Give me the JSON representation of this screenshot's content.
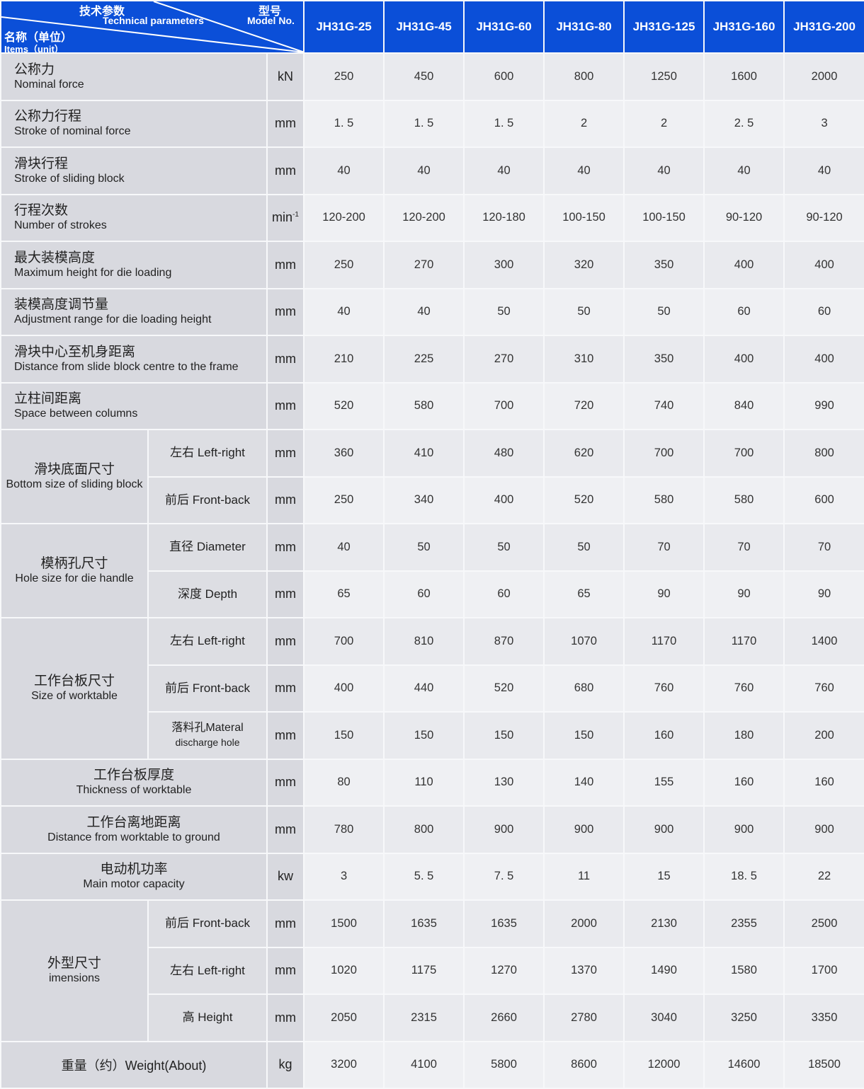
{
  "header": {
    "tech_cn": "技术参数",
    "tech_en": "Technical parameters",
    "model_cn": "型号",
    "model_en": "Model No.",
    "items_cn": "名称（单位）",
    "items_en": "Items（unit）",
    "models": [
      "JH31G-25",
      "JH31G-45",
      "JH31G-60",
      "JH31G-80",
      "JH31G-125",
      "JH31G-160",
      "JH31G-200"
    ],
    "color": "#0b4fd8"
  },
  "rows": [
    {
      "cn": "公称力",
      "en": "Nominal force",
      "unit": "kN",
      "values": [
        "250",
        "450",
        "600",
        "800",
        "1250",
        "1600",
        "2000"
      ],
      "align": "left"
    },
    {
      "cn": "公称力行程",
      "en": "Stroke of nominal force",
      "unit": "mm",
      "values": [
        "1. 5",
        "1. 5",
        "1. 5",
        "2",
        "2",
        "2. 5",
        "3"
      ],
      "align": "left"
    },
    {
      "cn": "滑块行程",
      "en": "Stroke of sliding block",
      "unit": "mm",
      "values": [
        "40",
        "40",
        "40",
        "40",
        "40",
        "40",
        "40"
      ],
      "align": "left"
    },
    {
      "cn": "行程次数",
      "en": "Number of strokes",
      "unit": "min",
      "unit_sup": "-1",
      "values": [
        "120-200",
        "120-200",
        "120-180",
        "100-150",
        "100-150",
        "90-120",
        "90-120"
      ],
      "align": "left"
    },
    {
      "cn": "最大装模高度",
      "en": "Maximum height for die loading",
      "unit": "mm",
      "values": [
        "250",
        "270",
        "300",
        "320",
        "350",
        "400",
        "400"
      ],
      "align": "left"
    },
    {
      "cn": "装模高度调节量",
      "en": "Adjustment range for die loading height",
      "unit": "mm",
      "values": [
        "40",
        "40",
        "50",
        "50",
        "50",
        "60",
        "60"
      ],
      "align": "left"
    },
    {
      "cn": "滑块中心至机身距离",
      "en": "Distance from slide block centre to the frame",
      "unit": "mm",
      "values": [
        "210",
        "225",
        "270",
        "310",
        "350",
        "400",
        "400"
      ],
      "align": "left"
    },
    {
      "cn": "立柱间距离",
      "en": "Space between columns",
      "unit": "mm",
      "values": [
        "520",
        "580",
        "700",
        "720",
        "740",
        "840",
        "990"
      ],
      "align": "left"
    },
    {
      "group_cn": "滑块底面尺寸",
      "group_en": "Bottom size of sliding block",
      "group_span": 2,
      "sub": "左右  Left-right",
      "unit": "mm",
      "values": [
        "360",
        "410",
        "480",
        "620",
        "700",
        "700",
        "800"
      ]
    },
    {
      "sub": "前后  Front-back",
      "unit": "mm",
      "values": [
        "250",
        "340",
        "400",
        "520",
        "580",
        "580",
        "600"
      ]
    },
    {
      "group_cn": "模柄孔尺寸",
      "group_en": "Hole size for die handle",
      "group_span": 2,
      "sub": "直径  Diameter",
      "unit": "mm",
      "values": [
        "40",
        "50",
        "50",
        "50",
        "70",
        "70",
        "70"
      ]
    },
    {
      "sub": "深度  Depth",
      "unit": "mm",
      "values": [
        "65",
        "60",
        "60",
        "65",
        "90",
        "90",
        "90"
      ]
    },
    {
      "group_cn": "工作台板尺寸",
      "group_en": "Size of worktable",
      "group_span": 3,
      "sub": "左右  Left-right",
      "unit": "mm",
      "values": [
        "700",
        "810",
        "870",
        "1070",
        "1170",
        "1170",
        "1400"
      ]
    },
    {
      "sub": "前后  Front-back",
      "unit": "mm",
      "values": [
        "400",
        "440",
        "520",
        "680",
        "760",
        "760",
        "760"
      ]
    },
    {
      "sub": "落料孔Materal",
      "sub2": "discharge hole",
      "unit": "mm",
      "values": [
        "150",
        "150",
        "150",
        "150",
        "160",
        "180",
        "200"
      ]
    },
    {
      "cn": "工作台板厚度",
      "en": "Thickness of worktable",
      "unit": "mm",
      "values": [
        "80",
        "110",
        "130",
        "140",
        "155",
        "160",
        "160"
      ],
      "align": "center"
    },
    {
      "cn": "工作台离地距离",
      "en": "Distance from worktable to ground",
      "unit": "mm",
      "values": [
        "780",
        "800",
        "900",
        "900",
        "900",
        "900",
        "900"
      ],
      "align": "center"
    },
    {
      "cn": "电动机功率",
      "en": "Main motor capacity",
      "unit": "kw",
      "values": [
        "3",
        "5. 5",
        "7. 5",
        "11",
        "15",
        "18. 5",
        "22"
      ],
      "align": "center"
    },
    {
      "group_cn": "外型尺寸",
      "group_en": "imensions",
      "group_span": 3,
      "sub": "前后  Front-back",
      "unit": "mm",
      "values": [
        "1500",
        "1635",
        "1635",
        "2000",
        "2130",
        "2355",
        "2500"
      ]
    },
    {
      "sub": "左右  Left-right",
      "unit": "mm",
      "values": [
        "1020",
        "1175",
        "1270",
        "1370",
        "1490",
        "1580",
        "1700"
      ]
    },
    {
      "sub": "高  Height",
      "unit": "mm",
      "values": [
        "2050",
        "2315",
        "2660",
        "2780",
        "3040",
        "3250",
        "3350"
      ]
    },
    {
      "single": "重量（约）Weight(About)",
      "unit": "kg",
      "values": [
        "3200",
        "4100",
        "5800",
        "8600",
        "12000",
        "14600",
        "18500"
      ],
      "align": "center"
    }
  ]
}
